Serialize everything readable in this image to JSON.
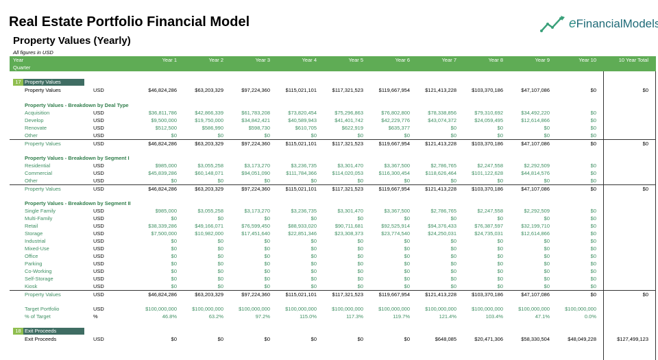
{
  "title": "Real Estate Portfolio Financial Model",
  "subtitle": "Property Values (Yearly)",
  "note": "All figures in USD",
  "logo": {
    "prefix": "e",
    "name": "FinancialModels"
  },
  "header": {
    "year_label": "Year",
    "quarter_label": "Quarter",
    "years": [
      "Year 1",
      "Year 2",
      "Year 3",
      "Year 4",
      "Year 5",
      "Year 6",
      "Year 7",
      "Year 8",
      "Year 9",
      "Year 10"
    ],
    "total": "10 Year Total"
  },
  "sections": {
    "s17": {
      "num": "17",
      "name": "Property Values"
    },
    "s18": {
      "num": "18",
      "name": "Exit Proceeds"
    }
  },
  "rows": [
    {
      "label": "Property Values",
      "unit": "USD",
      "values": [
        "$46,824,286",
        "$63,203,329",
        "$97,224,360",
        "$115,021,101",
        "$117,321,523",
        "$119,667,954",
        "$121,413,228",
        "$103,370,186",
        "$47,107,086",
        "$0"
      ],
      "total": "$0",
      "style": "plain"
    },
    {
      "label": "Property Values - Breakdown by Deal Type",
      "style": "heading"
    },
    {
      "label": "Acquisition",
      "unit": "USD",
      "values": [
        "$36,811,786",
        "$42,866,339",
        "$61,783,208",
        "$73,820,454",
        "$75,296,863",
        "$76,802,800",
        "$78,338,856",
        "$79,310,692",
        "$34,492,220",
        "$0"
      ],
      "style": "green"
    },
    {
      "label": "Develop",
      "unit": "USD",
      "values": [
        "$9,500,000",
        "$19,750,000",
        "$34,842,421",
        "$40,589,943",
        "$41,401,742",
        "$42,229,776",
        "$43,074,372",
        "$24,059,495",
        "$12,614,866",
        "$0"
      ],
      "style": "green"
    },
    {
      "label": "Renovate",
      "unit": "USD",
      "values": [
        "$512,500",
        "$586,990",
        "$598,730",
        "$610,705",
        "$622,919",
        "$635,377",
        "$0",
        "$0",
        "$0",
        "$0"
      ],
      "style": "green"
    },
    {
      "label": "Other",
      "unit": "USD",
      "values": [
        "$0",
        "$0",
        "$0",
        "$0",
        "$0",
        "$0",
        "$0",
        "$0",
        "$0",
        "$0"
      ],
      "style": "green"
    },
    {
      "label": "Property Values",
      "unit": "USD",
      "values": [
        "$46,824,286",
        "$63,203,329",
        "$97,224,360",
        "$115,021,101",
        "$117,321,523",
        "$119,667,954",
        "$121,413,228",
        "$103,370,186",
        "$47,107,086",
        "$0"
      ],
      "total": "$0",
      "style": "total"
    },
    {
      "label": "Property Values - Breakdown by Segment I",
      "style": "heading"
    },
    {
      "label": "Residential",
      "unit": "USD",
      "values": [
        "$985,000",
        "$3,055,258",
        "$3,173,270",
        "$3,236,735",
        "$3,301,470",
        "$3,367,500",
        "$2,786,765",
        "$2,247,558",
        "$2,292,509",
        "$0"
      ],
      "style": "green"
    },
    {
      "label": "Commercial",
      "unit": "USD",
      "values": [
        "$45,839,286",
        "$60,148,071",
        "$94,051,090",
        "$111,784,366",
        "$114,020,053",
        "$116,300,454",
        "$118,626,464",
        "$101,122,628",
        "$44,814,576",
        "$0"
      ],
      "style": "green"
    },
    {
      "label": "Other",
      "unit": "USD",
      "values": [
        "$0",
        "$0",
        "$0",
        "$0",
        "$0",
        "$0",
        "$0",
        "$0",
        "$0",
        "$0"
      ],
      "style": "green"
    },
    {
      "label": "Property Values",
      "unit": "USD",
      "values": [
        "$46,824,286",
        "$63,203,329",
        "$97,224,360",
        "$115,021,101",
        "$117,321,523",
        "$119,667,954",
        "$121,413,228",
        "$103,370,186",
        "$47,107,086",
        "$0"
      ],
      "total": "$0",
      "style": "total"
    },
    {
      "label": "Property Values - Breakdown by Segment II",
      "style": "heading"
    },
    {
      "label": "Single Family",
      "unit": "USD",
      "values": [
        "$985,000",
        "$3,055,258",
        "$3,173,270",
        "$3,236,735",
        "$3,301,470",
        "$3,367,500",
        "$2,786,765",
        "$2,247,558",
        "$2,292,509",
        "$0"
      ],
      "style": "green"
    },
    {
      "label": "Multi-Family",
      "unit": "USD",
      "values": [
        "$0",
        "$0",
        "$0",
        "$0",
        "$0",
        "$0",
        "$0",
        "$0",
        "$0",
        "$0"
      ],
      "style": "green"
    },
    {
      "label": "Retail",
      "unit": "USD",
      "values": [
        "$38,339,286",
        "$49,166,071",
        "$76,599,450",
        "$88,933,020",
        "$90,711,681",
        "$92,525,914",
        "$94,376,433",
        "$76,387,597",
        "$32,199,710",
        "$0"
      ],
      "style": "green"
    },
    {
      "label": "Storage",
      "unit": "USD",
      "values": [
        "$7,500,000",
        "$10,982,000",
        "$17,451,640",
        "$22,851,346",
        "$23,308,373",
        "$23,774,540",
        "$24,250,031",
        "$24,735,031",
        "$12,614,866",
        "$0"
      ],
      "style": "green"
    },
    {
      "label": "Industrial",
      "unit": "USD",
      "values": [
        "$0",
        "$0",
        "$0",
        "$0",
        "$0",
        "$0",
        "$0",
        "$0",
        "$0",
        "$0"
      ],
      "style": "green"
    },
    {
      "label": "Mixed-Use",
      "unit": "USD",
      "values": [
        "$0",
        "$0",
        "$0",
        "$0",
        "$0",
        "$0",
        "$0",
        "$0",
        "$0",
        "$0"
      ],
      "style": "green"
    },
    {
      "label": "Office",
      "unit": "USD",
      "values": [
        "$0",
        "$0",
        "$0",
        "$0",
        "$0",
        "$0",
        "$0",
        "$0",
        "$0",
        "$0"
      ],
      "style": "green"
    },
    {
      "label": "Parking",
      "unit": "USD",
      "values": [
        "$0",
        "$0",
        "$0",
        "$0",
        "$0",
        "$0",
        "$0",
        "$0",
        "$0",
        "$0"
      ],
      "style": "green"
    },
    {
      "label": "Co-Working",
      "unit": "USD",
      "values": [
        "$0",
        "$0",
        "$0",
        "$0",
        "$0",
        "$0",
        "$0",
        "$0",
        "$0",
        "$0"
      ],
      "style": "green"
    },
    {
      "label": "Self-Storage",
      "unit": "USD",
      "values": [
        "$0",
        "$0",
        "$0",
        "$0",
        "$0",
        "$0",
        "$0",
        "$0",
        "$0",
        "$0"
      ],
      "style": "green"
    },
    {
      "label": "Kiosk",
      "unit": "USD",
      "values": [
        "$0",
        "$0",
        "$0",
        "$0",
        "$0",
        "$0",
        "$0",
        "$0",
        "$0",
        "$0"
      ],
      "style": "green"
    },
    {
      "label": "Property Values",
      "unit": "USD",
      "values": [
        "$46,824,286",
        "$63,203,329",
        "$97,224,360",
        "$115,021,101",
        "$117,321,523",
        "$119,667,954",
        "$121,413,228",
        "$103,370,186",
        "$47,107,086",
        "$0"
      ],
      "total": "$0",
      "style": "total"
    },
    {
      "label": "Target Portfolio",
      "unit": "USD",
      "values": [
        "$100,000,000",
        "$100,000,000",
        "$100,000,000",
        "$100,000,000",
        "$100,000,000",
        "$100,000,000",
        "$100,000,000",
        "$100,000,000",
        "$100,000,000",
        "$100,000,000"
      ],
      "style": "green"
    },
    {
      "label": "% of Target",
      "unit": "%",
      "values": [
        "46.8%",
        "63.2%",
        "97.2%",
        "115.0%",
        "117.3%",
        "119.7%",
        "121.4%",
        "103.4%",
        "47.1%",
        "0.0%"
      ],
      "style": "green"
    },
    {
      "label": "Exit Proceeds",
      "unit": "USD",
      "values": [
        "$0",
        "$0",
        "$0",
        "$0",
        "$0",
        "$0",
        "$648,085",
        "$20,471,306",
        "$58,330,504",
        "$48,049,228"
      ],
      "total": "$127,499,123",
      "style": "plain"
    }
  ]
}
